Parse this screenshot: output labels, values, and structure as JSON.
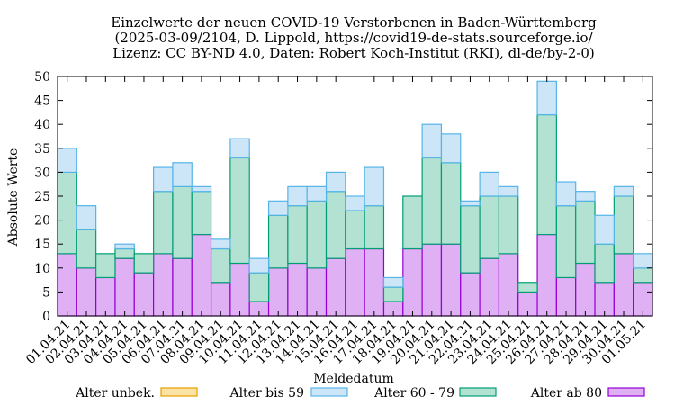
{
  "chart_data": {
    "type": "bar",
    "stacked": true,
    "title_lines": [
      "Einzelwerte der neuen COVID-19 Verstorbenen in Baden-Württemberg",
      "(2025-03-09/2104, D. Lippold, https://covid19-de-stats.sourceforge.io/",
      "Lizenz: CC BY-ND 4.0, Daten: Robert Koch-Institut (RKI), dl-de/by-2-0)"
    ],
    "xlabel": "Meldedatum",
    "ylabel": "Absolute Werte",
    "ylim": [
      0,
      50
    ],
    "yticks": [
      0,
      5,
      10,
      15,
      20,
      25,
      30,
      35,
      40,
      45,
      50
    ],
    "grid": false,
    "legend_position": "bottom",
    "categories": [
      "01.04.21",
      "02.04.21",
      "03.04.21",
      "04.04.21",
      "05.04.21",
      "06.04.21",
      "07.04.21",
      "08.04.21",
      "09.04.21",
      "10.04.21",
      "11.04.21",
      "12.04.21",
      "13.04.21",
      "14.04.21",
      "15.04.21",
      "16.04.21",
      "17.04.21",
      "18.04.21",
      "19.04.21",
      "20.04.21",
      "21.04.21",
      "22.04.21",
      "23.04.21",
      "24.04.21",
      "25.04.21",
      "26.04.21",
      "27.04.21",
      "28.04.21",
      "29.04.21",
      "30.04.21",
      "01.05.21"
    ],
    "series": [
      {
        "name": "Alter ab 80",
        "fill": "#e0b0f4",
        "stroke": "#9400d3",
        "values": [
          13,
          10,
          8,
          12,
          9,
          13,
          12,
          17,
          7,
          11,
          3,
          10,
          11,
          10,
          12,
          14,
          14,
          3,
          14,
          15,
          15,
          9,
          12,
          13,
          5,
          17,
          8,
          11,
          7,
          13,
          7
        ]
      },
      {
        "name": "Alter 60 - 79",
        "fill": "#b3e2d3",
        "stroke": "#009e73",
        "values": [
          17,
          8,
          5,
          2,
          4,
          13,
          15,
          9,
          7,
          22,
          6,
          11,
          12,
          14,
          14,
          8,
          9,
          3,
          11,
          18,
          17,
          14,
          13,
          12,
          2,
          25,
          15,
          13,
          8,
          12,
          3
        ]
      },
      {
        "name": "Alter bis 59",
        "fill": "#cde6f7",
        "stroke": "#56b4e9",
        "values": [
          5,
          5,
          0,
          1,
          0,
          5,
          5,
          1,
          2,
          4,
          3,
          3,
          4,
          3,
          4,
          3,
          8,
          2,
          0,
          7,
          6,
          1,
          5,
          2,
          0,
          7,
          5,
          2,
          6,
          2,
          3
        ]
      },
      {
        "name": "Alter unbek.",
        "fill": "#fbe3a6",
        "stroke": "#e69f00",
        "values": [
          0,
          0,
          0,
          0,
          0,
          0,
          0,
          0,
          0,
          0,
          0,
          0,
          0,
          0,
          0,
          0,
          0,
          0,
          0,
          0,
          0,
          0,
          0,
          0,
          0,
          0,
          0,
          0,
          0,
          0,
          0
        ]
      }
    ],
    "legend_order": [
      "Alter unbek.",
      "Alter bis 59",
      "Alter 60 - 79",
      "Alter ab 80"
    ]
  }
}
